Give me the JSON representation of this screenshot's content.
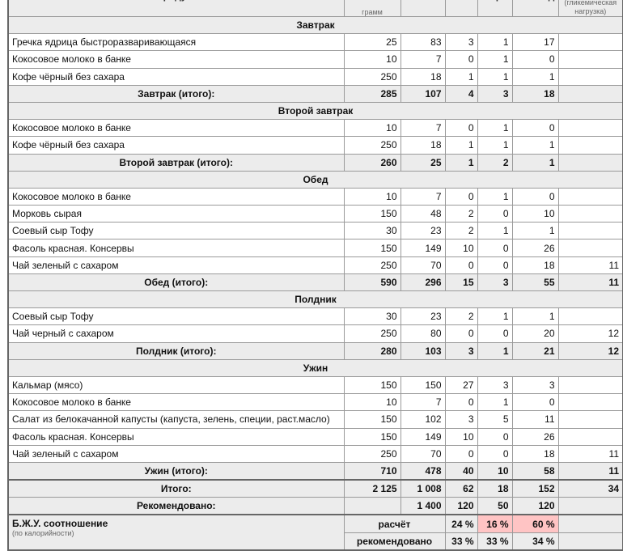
{
  "header": {
    "product": "Продукт",
    "grams": "грамм",
    "kcal": "Ккал",
    "protein": "Белки",
    "fat": "Жиры",
    "carbs": "Углеводы",
    "gl": "(гликемическая нагрузка)"
  },
  "sections": [
    {
      "title": "Завтрак",
      "items": [
        [
          "Гречка ядрица быстроразваривающаяся",
          "25",
          "83",
          "3",
          "1",
          "17",
          ""
        ],
        [
          "Кокосовое молоко в банке",
          "10",
          "7",
          "0",
          "1",
          "0",
          ""
        ],
        [
          "Кофе чёрный без сахара",
          "250",
          "18",
          "1",
          "1",
          "1",
          ""
        ]
      ],
      "total": [
        "Завтрак (итого):",
        "285",
        "107",
        "4",
        "3",
        "18",
        ""
      ]
    },
    {
      "title": "Второй завтрак",
      "items": [
        [
          "Кокосовое молоко в банке",
          "10",
          "7",
          "0",
          "1",
          "0",
          ""
        ],
        [
          "Кофе чёрный без сахара",
          "250",
          "18",
          "1",
          "1",
          "1",
          ""
        ]
      ],
      "total": [
        "Второй завтрак (итого):",
        "260",
        "25",
        "1",
        "2",
        "1",
        ""
      ]
    },
    {
      "title": "Обед",
      "items": [
        [
          "Кокосовое молоко в банке",
          "10",
          "7",
          "0",
          "1",
          "0",
          ""
        ],
        [
          "Морковь сырая",
          "150",
          "48",
          "2",
          "0",
          "10",
          ""
        ],
        [
          "Соевый сыр Тофу",
          "30",
          "23",
          "2",
          "1",
          "1",
          ""
        ],
        [
          "Фасоль красная. Консервы",
          "150",
          "149",
          "10",
          "0",
          "26",
          ""
        ],
        [
          "Чай зеленый с сахаром",
          "250",
          "70",
          "0",
          "0",
          "18",
          "11"
        ]
      ],
      "total": [
        "Обед (итого):",
        "590",
        "296",
        "15",
        "3",
        "55",
        "11"
      ]
    },
    {
      "title": "Полдник",
      "items": [
        [
          "Соевый сыр Тофу",
          "30",
          "23",
          "2",
          "1",
          "1",
          ""
        ],
        [
          "Чай черный с сахаром",
          "250",
          "80",
          "0",
          "0",
          "20",
          "12"
        ]
      ],
      "total": [
        "Полдник (итого):",
        "280",
        "103",
        "3",
        "1",
        "21",
        "12"
      ]
    },
    {
      "title": "Ужин",
      "items": [
        [
          "Кальмар (мясо)",
          "150",
          "150",
          "27",
          "3",
          "3",
          ""
        ],
        [
          "Кокосовое молоко в банке",
          "10",
          "7",
          "0",
          "1",
          "0",
          ""
        ],
        [
          "Салат из белокачанной капусты (капуста, зелень, специи, раст.масло)",
          "150",
          "102",
          "3",
          "5",
          "11",
          ""
        ],
        [
          "Фасоль красная. Консервы",
          "150",
          "149",
          "10",
          "0",
          "26",
          ""
        ],
        [
          "Чай зеленый с сахаром",
          "250",
          "70",
          "0",
          "0",
          "18",
          "11"
        ]
      ],
      "total": [
        "Ужин (итого):",
        "710",
        "478",
        "40",
        "10",
        "58",
        "11"
      ]
    }
  ],
  "grand_total": [
    "Итого:",
    "2 125",
    "1 008",
    "62",
    "18",
    "152",
    "34"
  ],
  "recommended": [
    "Рекомендовано:",
    "",
    "1 400",
    "120",
    "50",
    "120",
    ""
  ],
  "bju": {
    "title": "Б.Ж.У. соотношение",
    "subtitle": "(по калорийности)",
    "calc_label": "расчёт",
    "calc": [
      "24 %",
      "16 %",
      "60 %"
    ],
    "rec_label": "рекомендовано",
    "rec": [
      "33 %",
      "33 %",
      "34 %"
    ],
    "highlight_color": "#ffc4c4"
  }
}
